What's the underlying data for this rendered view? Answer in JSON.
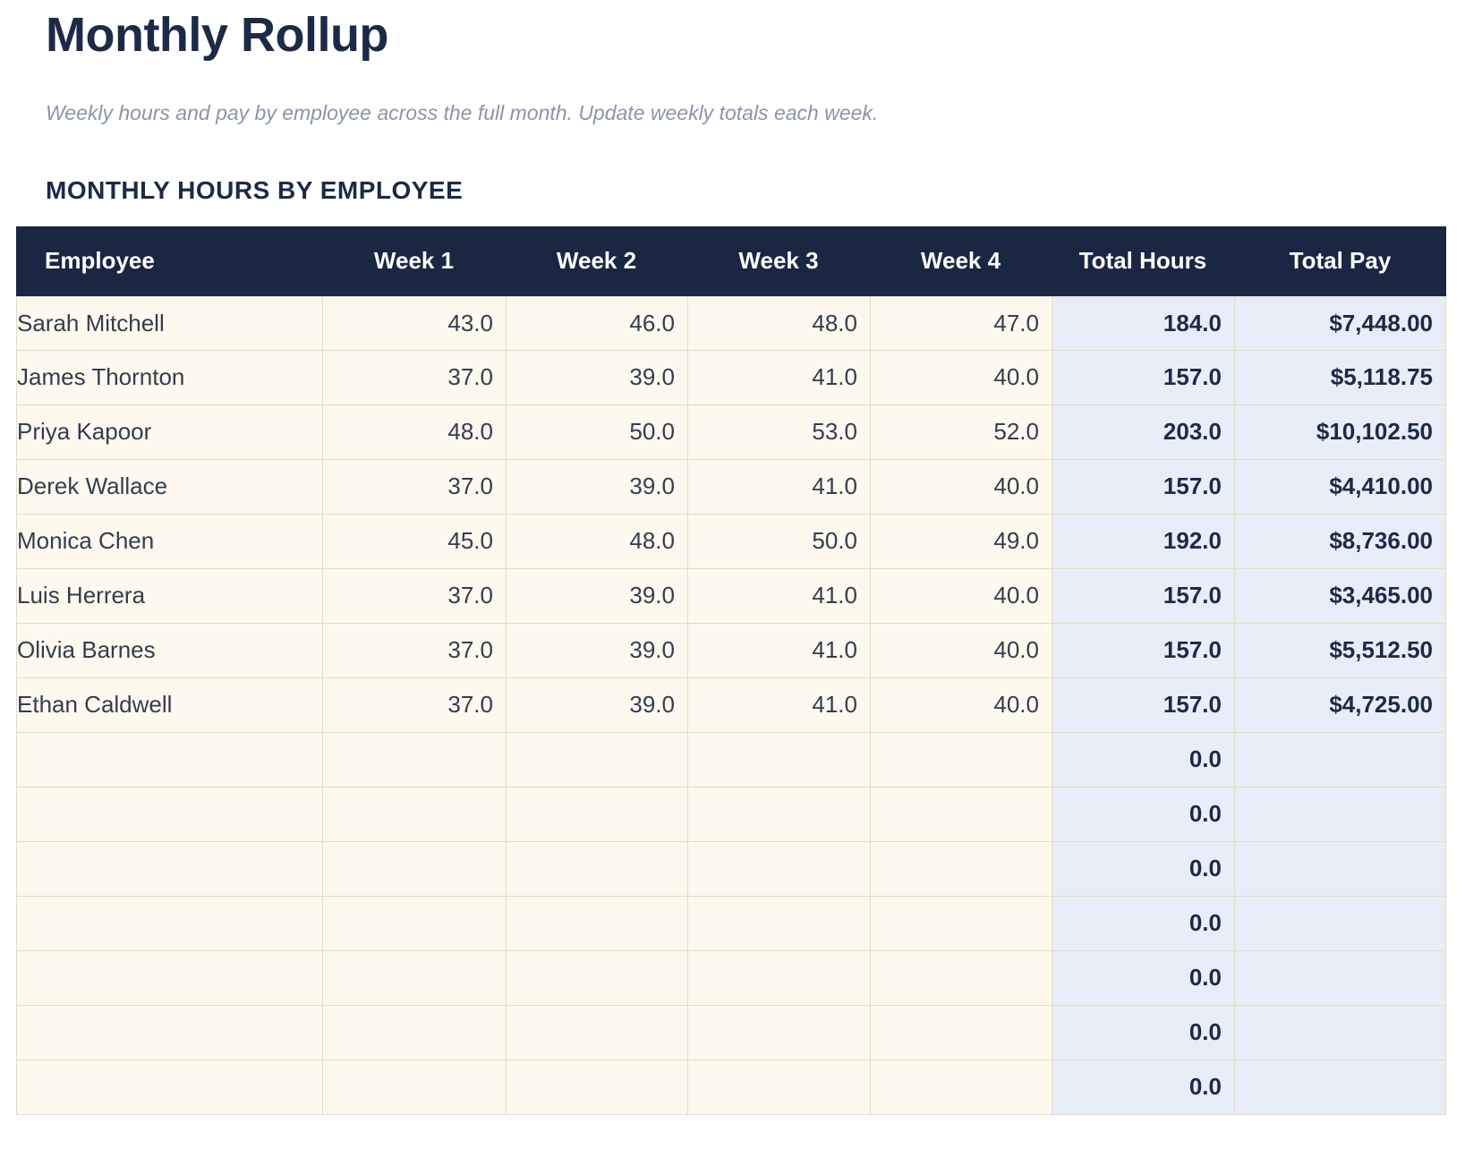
{
  "page": {
    "title": "Monthly Rollup",
    "subtitle": "Weekly hours and pay by employee across the full month. Update weekly totals each week.",
    "section_heading": "MONTHLY HOURS BY EMPLOYEE"
  },
  "table": {
    "columns": [
      "Employee",
      "Week 1",
      "Week 2",
      "Week 3",
      "Week 4",
      "Total Hours",
      "Total Pay"
    ],
    "rows": [
      {
        "employee": "Sarah Mitchell",
        "week1": "43.0",
        "week2": "46.0",
        "week3": "48.0",
        "week4": "47.0",
        "total_hours": "184.0",
        "total_pay": "$7,448.00"
      },
      {
        "employee": "James Thornton",
        "week1": "37.0",
        "week2": "39.0",
        "week3": "41.0",
        "week4": "40.0",
        "total_hours": "157.0",
        "total_pay": "$5,118.75"
      },
      {
        "employee": "Priya Kapoor",
        "week1": "48.0",
        "week2": "50.0",
        "week3": "53.0",
        "week4": "52.0",
        "total_hours": "203.0",
        "total_pay": "$10,102.50"
      },
      {
        "employee": "Derek Wallace",
        "week1": "37.0",
        "week2": "39.0",
        "week3": "41.0",
        "week4": "40.0",
        "total_hours": "157.0",
        "total_pay": "$4,410.00"
      },
      {
        "employee": "Monica Chen",
        "week1": "45.0",
        "week2": "48.0",
        "week3": "50.0",
        "week4": "49.0",
        "total_hours": "192.0",
        "total_pay": "$8,736.00"
      },
      {
        "employee": "Luis Herrera",
        "week1": "37.0",
        "week2": "39.0",
        "week3": "41.0",
        "week4": "40.0",
        "total_hours": "157.0",
        "total_pay": "$3,465.00"
      },
      {
        "employee": "Olivia Barnes",
        "week1": "37.0",
        "week2": "39.0",
        "week3": "41.0",
        "week4": "40.0",
        "total_hours": "157.0",
        "total_pay": "$5,512.50"
      },
      {
        "employee": "Ethan Caldwell",
        "week1": "37.0",
        "week2": "39.0",
        "week3": "41.0",
        "week4": "40.0",
        "total_hours": "157.0",
        "total_pay": "$4,725.00"
      }
    ],
    "empty_rows": [
      {
        "employee": "",
        "week1": "",
        "week2": "",
        "week3": "",
        "week4": "",
        "total_hours": "0.0",
        "total_pay": ""
      },
      {
        "employee": "",
        "week1": "",
        "week2": "",
        "week3": "",
        "week4": "",
        "total_hours": "0.0",
        "total_pay": ""
      },
      {
        "employee": "",
        "week1": "",
        "week2": "",
        "week3": "",
        "week4": "",
        "total_hours": "0.0",
        "total_pay": ""
      },
      {
        "employee": "",
        "week1": "",
        "week2": "",
        "week3": "",
        "week4": "",
        "total_hours": "0.0",
        "total_pay": ""
      },
      {
        "employee": "",
        "week1": "",
        "week2": "",
        "week3": "",
        "week4": "",
        "total_hours": "0.0",
        "total_pay": ""
      },
      {
        "employee": "",
        "week1": "",
        "week2": "",
        "week3": "",
        "week4": "",
        "total_hours": "0.0",
        "total_pay": ""
      },
      {
        "employee": "",
        "week1": "",
        "week2": "",
        "week3": "",
        "week4": "",
        "total_hours": "0.0",
        "total_pay": ""
      }
    ]
  },
  "colors": {
    "header_bg": "#1a2742",
    "heading_text": "#1d2a47",
    "cell_text": "#333d4f",
    "subtitle_text": "#8b95a7",
    "week_cell_bg": "#fdf9ee",
    "week_cell_border": "#e6dcbc",
    "total_cell_bg": "#e9edf7",
    "total_cell_border": "#a2adc9"
  }
}
